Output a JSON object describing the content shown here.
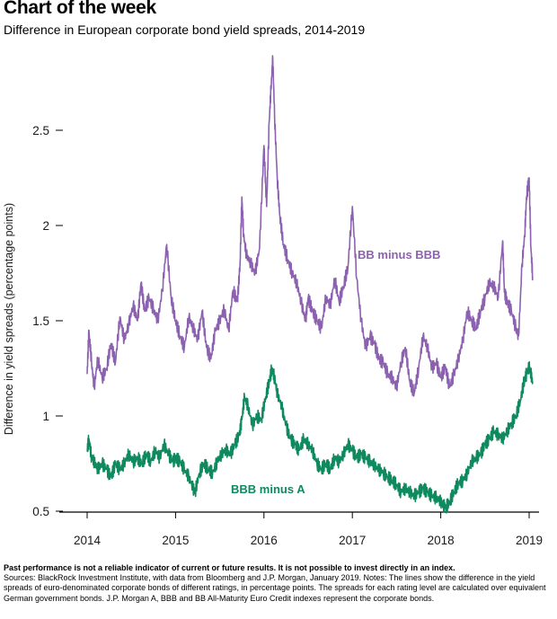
{
  "header": {
    "title": "Chart of the week",
    "subtitle": "Difference in European corporate bond yield spreads, 2014-2019"
  },
  "footer": {
    "disclaimer": "Past performance is not a reliable indicator of current or future results. It is not possible to invest directly in an index.",
    "sources": "Sources: BlackRock Investment Institute, with data from Bloomberg and J.P. Morgan, January 2019. Notes: The lines show the difference in the yield spreads of euro-denominated corporate bonds of different ratings, in percentage points. The spreads for each rating level are calculated over equivalent German government bonds. J.P. Morgan A, BBB and BB All-Maturity Euro Credit indexes represent the corporate bonds."
  },
  "colors": {
    "bb_minus_bbb": "#8c62b0",
    "bbb_minus_a": "#0f8a5f",
    "axis": "#000000",
    "text": "#1a1a1a"
  },
  "chart_data": {
    "type": "line",
    "title": "Chart of the week",
    "subtitle": "Difference in European corporate bond yield spreads, 2014-2019",
    "xlabel": "",
    "ylabel": "Difference in yield spreads (percentage points)",
    "xlim": [
      2014,
      2019
    ],
    "ylim": [
      0.5,
      2.5
    ],
    "x_ticks": [
      "2014",
      "2015",
      "2016",
      "2017",
      "2018",
      "2019"
    ],
    "y_ticks": [
      "0.5",
      "1",
      "1.5",
      "2",
      "2.5"
    ],
    "grid": false,
    "series": [
      {
        "name": "BB minus BBB",
        "label": "BB minus BBB",
        "x": [
          2014.0,
          2014.02,
          2014.05,
          2014.08,
          2014.12,
          2014.17,
          2014.22,
          2014.27,
          2014.32,
          2014.37,
          2014.42,
          2014.47,
          2014.52,
          2014.57,
          2014.61,
          2014.65,
          2014.7,
          2014.75,
          2014.8,
          2014.85,
          2014.9,
          2014.95,
          2015.0,
          2015.05,
          2015.1,
          2015.15,
          2015.2,
          2015.25,
          2015.3,
          2015.35,
          2015.4,
          2015.45,
          2015.5,
          2015.55,
          2015.6,
          2015.65,
          2015.7,
          2015.73,
          2015.75,
          2015.77,
          2015.8,
          2015.85,
          2015.9,
          2015.95,
          2016.0,
          2016.03,
          2016.06,
          2016.08,
          2016.1,
          2016.12,
          2016.15,
          2016.18,
          2016.22,
          2016.27,
          2016.32,
          2016.37,
          2016.42,
          2016.47,
          2016.5,
          2016.55,
          2016.6,
          2016.65,
          2016.7,
          2016.75,
          2016.8,
          2016.85,
          2016.9,
          2016.95,
          2017.0,
          2017.05,
          2017.1,
          2017.15,
          2017.2,
          2017.25,
          2017.3,
          2017.35,
          2017.4,
          2017.45,
          2017.5,
          2017.55,
          2017.6,
          2017.65,
          2017.7,
          2017.75,
          2017.8,
          2017.85,
          2017.9,
          2017.95,
          2018.0,
          2018.05,
          2018.1,
          2018.15,
          2018.2,
          2018.25,
          2018.3,
          2018.35,
          2018.4,
          2018.45,
          2018.5,
          2018.55,
          2018.6,
          2018.65,
          2018.7,
          2018.72,
          2018.75,
          2018.8,
          2018.85,
          2018.88,
          2018.92,
          2018.95,
          2018.97,
          2019.0,
          2019.02,
          2019.04
        ],
        "values": [
          1.22,
          1.45,
          1.28,
          1.15,
          1.3,
          1.2,
          1.25,
          1.38,
          1.28,
          1.52,
          1.4,
          1.48,
          1.58,
          1.5,
          1.7,
          1.55,
          1.62,
          1.56,
          1.5,
          1.66,
          1.9,
          1.62,
          1.5,
          1.42,
          1.36,
          1.52,
          1.46,
          1.4,
          1.55,
          1.36,
          1.3,
          1.45,
          1.5,
          1.56,
          1.45,
          1.66,
          1.6,
          1.8,
          2.15,
          1.95,
          1.85,
          1.8,
          1.75,
          1.88,
          2.42,
          2.1,
          2.55,
          2.72,
          2.88,
          2.58,
          2.25,
          2.05,
          1.9,
          1.82,
          1.75,
          1.7,
          1.6,
          1.5,
          1.62,
          1.55,
          1.5,
          1.46,
          1.62,
          1.58,
          1.72,
          1.6,
          1.68,
          1.78,
          2.1,
          1.72,
          1.5,
          1.36,
          1.42,
          1.38,
          1.3,
          1.28,
          1.22,
          1.2,
          1.15,
          1.28,
          1.36,
          1.18,
          1.12,
          1.25,
          1.42,
          1.36,
          1.25,
          1.28,
          1.2,
          1.26,
          1.15,
          1.22,
          1.3,
          1.4,
          1.55,
          1.5,
          1.46,
          1.55,
          1.62,
          1.7,
          1.68,
          1.62,
          1.92,
          1.65,
          1.6,
          1.55,
          1.46,
          1.42,
          1.8,
          1.95,
          2.15,
          2.25,
          1.88,
          1.73
        ]
      },
      {
        "name": "BBB minus A",
        "label": "BBB minus A",
        "x": [
          2014.0,
          2014.02,
          2014.05,
          2014.08,
          2014.12,
          2014.17,
          2014.22,
          2014.27,
          2014.32,
          2014.37,
          2014.42,
          2014.47,
          2014.52,
          2014.57,
          2014.62,
          2014.67,
          2014.72,
          2014.77,
          2014.82,
          2014.87,
          2014.92,
          2014.97,
          2015.0,
          2015.05,
          2015.1,
          2015.15,
          2015.2,
          2015.22,
          2015.27,
          2015.32,
          2015.37,
          2015.42,
          2015.47,
          2015.52,
          2015.57,
          2015.62,
          2015.67,
          2015.72,
          2015.75,
          2015.78,
          2015.82,
          2015.87,
          2015.92,
          2015.97,
          2016.02,
          2016.06,
          2016.09,
          2016.12,
          2016.15,
          2016.2,
          2016.25,
          2016.3,
          2016.35,
          2016.4,
          2016.45,
          2016.5,
          2016.55,
          2016.6,
          2016.65,
          2016.7,
          2016.75,
          2016.8,
          2016.85,
          2016.9,
          2016.95,
          2017.0,
          2017.05,
          2017.1,
          2017.15,
          2017.2,
          2017.25,
          2017.3,
          2017.35,
          2017.4,
          2017.45,
          2017.5,
          2017.55,
          2017.6,
          2017.65,
          2017.7,
          2017.75,
          2017.8,
          2017.85,
          2017.9,
          2017.95,
          2018.0,
          2018.03,
          2018.06,
          2018.1,
          2018.15,
          2018.2,
          2018.25,
          2018.3,
          2018.35,
          2018.4,
          2018.45,
          2018.5,
          2018.55,
          2018.6,
          2018.65,
          2018.7,
          2018.75,
          2018.8,
          2018.85,
          2018.9,
          2018.95,
          2018.97,
          2019.0,
          2019.02,
          2019.04
        ],
        "values": [
          0.82,
          0.88,
          0.78,
          0.76,
          0.72,
          0.75,
          0.72,
          0.68,
          0.75,
          0.72,
          0.75,
          0.8,
          0.76,
          0.78,
          0.75,
          0.8,
          0.76,
          0.82,
          0.78,
          0.85,
          0.8,
          0.76,
          0.78,
          0.76,
          0.72,
          0.68,
          0.62,
          0.6,
          0.7,
          0.75,
          0.72,
          0.7,
          0.76,
          0.8,
          0.82,
          0.8,
          0.85,
          0.9,
          0.98,
          1.1,
          1.05,
          0.95,
          1.0,
          0.98,
          1.1,
          1.18,
          1.25,
          1.2,
          1.12,
          1.05,
          0.95,
          0.88,
          0.85,
          0.82,
          0.88,
          0.85,
          0.82,
          0.75,
          0.72,
          0.75,
          0.72,
          0.78,
          0.76,
          0.8,
          0.85,
          0.82,
          0.78,
          0.8,
          0.78,
          0.76,
          0.74,
          0.72,
          0.7,
          0.68,
          0.66,
          0.64,
          0.6,
          0.62,
          0.6,
          0.58,
          0.6,
          0.62,
          0.6,
          0.58,
          0.57,
          0.55,
          0.53,
          0.52,
          0.55,
          0.6,
          0.65,
          0.66,
          0.7,
          0.76,
          0.78,
          0.8,
          0.85,
          0.88,
          0.92,
          0.9,
          0.88,
          0.92,
          0.96,
          1.0,
          1.08,
          1.2,
          1.22,
          1.26,
          1.22,
          1.18
        ]
      }
    ]
  }
}
